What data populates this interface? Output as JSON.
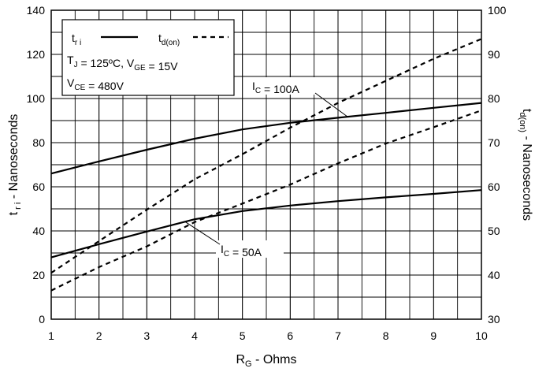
{
  "chart_data": {
    "type": "line",
    "x_axis": {
      "label": "R_G - Ohms",
      "label_main": "R",
      "label_sub": "G",
      "label_rest": " - Ohms",
      "range": [
        1,
        10
      ],
      "ticks": [
        1,
        2,
        3,
        4,
        5,
        6,
        7,
        8,
        9,
        10
      ]
    },
    "y_left": {
      "label": "t ri - Nanoseconds",
      "label_main": "t",
      "label_sub": " r i",
      "label_rest": " - Nanoseconds",
      "range": [
        0,
        140
      ],
      "ticks": [
        0,
        20,
        40,
        60,
        80,
        100,
        120,
        140
      ]
    },
    "y_right": {
      "label": "t d(on) - Nanoseconds",
      "label_main": "t",
      "label_sub": "d(on)",
      "label_rest": " - Nanoseconds",
      "range": [
        30,
        100
      ],
      "ticks": [
        30,
        40,
        50,
        60,
        70,
        80,
        90,
        100
      ]
    },
    "grid": true,
    "x_minor_divisions": 2,
    "y_minor_divisions": 2,
    "legend": {
      "placement": "top-left",
      "entries": [
        {
          "main": "t",
          "sub": "r i",
          "style": "solid"
        },
        {
          "main": "t",
          "sub": "d(on)",
          "style": "dashed"
        }
      ],
      "conditions": [
        {
          "parts": [
            [
              "T",
              "J"
            ],
            [
              " = 125ºC,  V",
              "GE"
            ],
            [
              " = 15V",
              ""
            ]
          ]
        },
        {
          "parts": [
            [
              "V",
              "CE"
            ],
            [
              " = 480V",
              ""
            ]
          ]
        }
      ]
    },
    "series": [
      {
        "label": "I C = 100A",
        "quantity": "t ri",
        "axis": "left",
        "style": "solid",
        "x": [
          1,
          2,
          3,
          4,
          5,
          6,
          7,
          8,
          9,
          10
        ],
        "y": [
          66,
          71.5,
          76.8,
          81.8,
          86,
          89,
          91.3,
          93.5,
          95.8,
          98
        ]
      },
      {
        "label": "I C = 50A",
        "quantity": "t ri",
        "axis": "left",
        "style": "solid",
        "x": [
          1,
          2,
          3,
          4,
          5,
          6,
          7,
          8,
          9,
          10
        ],
        "y": [
          28,
          34,
          39.7,
          45.3,
          49,
          51.5,
          53.5,
          55.2,
          56.8,
          58.5
        ]
      },
      {
        "label": "I C = 100A",
        "quantity": "t d(on)",
        "axis": "right",
        "style": "dashed",
        "x": [
          1,
          2,
          3,
          4,
          5,
          6,
          7,
          8,
          9,
          10
        ],
        "y": [
          40.5,
          47.7,
          54.8,
          61.7,
          67.4,
          73.4,
          79,
          84,
          89,
          93.5
        ]
      },
      {
        "label": "I C = 50A",
        "quantity": "t d(on)",
        "axis": "right",
        "style": "dashed",
        "x": [
          1,
          2,
          3,
          4,
          5,
          6,
          7,
          8,
          9,
          10
        ],
        "y": [
          36.5,
          41.8,
          46.5,
          52,
          56.2,
          60.5,
          65.3,
          69.8,
          73.5,
          77.3
        ]
      }
    ],
    "annotations": [
      {
        "main": "I",
        "sub": "C",
        "rest": " = 100A",
        "points_to": {
          "series": 0,
          "x": 7.2
        }
      },
      {
        "main": "I",
        "sub": "C",
        "rest": " = 50A",
        "points_to": {
          "series": 1,
          "x": 3.8
        }
      }
    ]
  }
}
